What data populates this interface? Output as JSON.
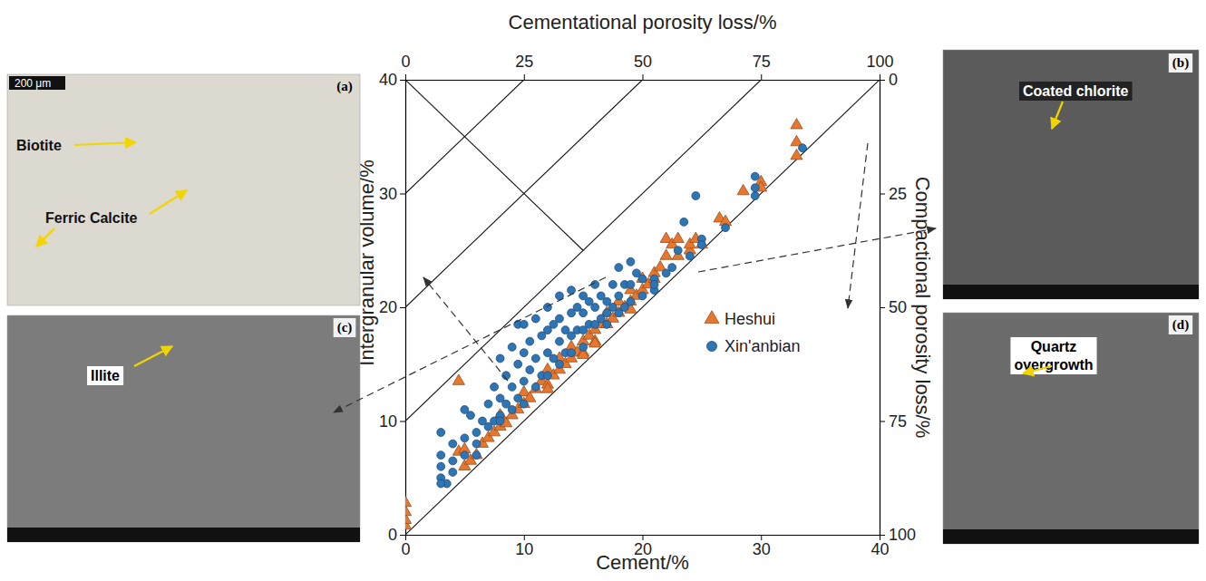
{
  "chart_data": {
    "type": "scatter",
    "x_label": "Cement/%",
    "y_label": "Intergranular volume/%",
    "x2_label": "Cementational porosity loss/%",
    "y2_label": "Compactional porosity loss/%",
    "xlim": [
      0,
      40
    ],
    "ylim": [
      0,
      40
    ],
    "xticks": [
      0,
      10,
      20,
      30,
      40
    ],
    "yticks": [
      0,
      10,
      20,
      30,
      40
    ],
    "x2lim": [
      0,
      100
    ],
    "x2ticks": [
      0,
      25,
      50,
      75,
      100
    ],
    "y2lim": [
      100,
      0
    ],
    "y2ticks": [
      0,
      25,
      50,
      75,
      100
    ],
    "legend": "right",
    "reference_lines": [
      {
        "x": [
          10,
          0
        ],
        "y": [
          40,
          30
        ]
      },
      {
        "x": [
          20,
          0
        ],
        "y": [
          40,
          20
        ]
      },
      {
        "x": [
          30,
          0
        ],
        "y": [
          40,
          10
        ]
      },
      {
        "x": [
          40,
          0
        ],
        "y": [
          40,
          0
        ]
      },
      {
        "x": [
          0,
          15
        ],
        "y": [
          40,
          25
        ]
      }
    ],
    "series": [
      {
        "name": "Heshui",
        "color": "#e8772e",
        "marker": "triangle",
        "x": [
          0,
          0,
          0,
          0,
          4.5,
          4.5,
          5,
          5,
          5.5,
          6,
          6.5,
          7,
          7.5,
          8,
          8,
          8.5,
          9,
          9.5,
          10,
          10,
          10.5,
          11,
          11.5,
          12,
          12,
          12.5,
          13,
          13,
          13.5,
          14,
          14,
          14.5,
          15,
          15,
          15.5,
          16,
          16,
          16.5,
          17,
          17,
          17.5,
          18,
          18,
          18.5,
          19,
          19,
          19.5,
          20,
          20,
          20.5,
          21,
          21,
          21.5,
          22,
          22,
          22.5,
          23,
          23,
          24,
          24,
          24.5,
          25,
          26.5,
          27,
          28.5,
          30,
          30,
          33,
          33,
          33,
          16,
          12,
          19,
          15
        ],
        "values": [
          0.8,
          1.3,
          2,
          2.8,
          13.5,
          7.3,
          7.5,
          6,
          6.5,
          7,
          8,
          8.5,
          9,
          9.5,
          10.5,
          9.8,
          10.5,
          11,
          11.5,
          12.5,
          12,
          12.8,
          13.5,
          13.2,
          14.5,
          14,
          14.5,
          15.5,
          15,
          15.5,
          16.5,
          16,
          17,
          16,
          17.5,
          18,
          17,
          18.5,
          18.5,
          19.5,
          19,
          19.5,
          20.5,
          20,
          20.5,
          21.5,
          21,
          21.5,
          22.5,
          22,
          22.5,
          23,
          23.5,
          24.5,
          26,
          25.5,
          24.5,
          26,
          25,
          25.5,
          26,
          25.5,
          27.8,
          27.5,
          30.2,
          31,
          30.5,
          36,
          34.5,
          33.3,
          16.8,
          12.8,
          19.8,
          15.8
        ]
      },
      {
        "name": "Xin'anbian",
        "color": "#2e75b6",
        "marker": "circle",
        "x": [
          3,
          3,
          3,
          3,
          3.5,
          4,
          4,
          5,
          5,
          5.5,
          6,
          6,
          6.5,
          7,
          7,
          7.5,
          7.5,
          8,
          8,
          8,
          8.5,
          8.5,
          9,
          9,
          9,
          9.5,
          9.5,
          9.5,
          10,
          10,
          10,
          10,
          10.5,
          10.5,
          11,
          11,
          11,
          11.5,
          11.5,
          12,
          12,
          12,
          12,
          12.5,
          12.5,
          13,
          13,
          13,
          13,
          13.5,
          13.5,
          14,
          14,
          14,
          14,
          14.5,
          14.5,
          15,
          15,
          15,
          15,
          15.5,
          15.5,
          16,
          16,
          16,
          16.5,
          16.5,
          17,
          17,
          17,
          17.5,
          17.5,
          18,
          18,
          18,
          18.5,
          18.5,
          19,
          19,
          19,
          19.5,
          20,
          20,
          21,
          21,
          22,
          23,
          23.5,
          24,
          24.5,
          25,
          25,
          27,
          29.5,
          29.5,
          29.5,
          33.5,
          3,
          21,
          22.5,
          8,
          6,
          4,
          5
        ],
        "values": [
          9,
          7,
          6,
          5,
          4.5,
          8,
          6.5,
          11,
          8.5,
          10.5,
          9,
          7,
          10,
          11.5,
          9.5,
          13,
          10,
          15.5,
          12,
          10.5,
          14,
          11.5,
          16.5,
          13,
          11,
          18.5,
          15,
          12,
          18.5,
          16,
          13.5,
          11.5,
          17,
          14.5,
          19,
          15.5,
          13,
          17.5,
          14,
          20,
          18,
          16,
          14,
          18.5,
          15.5,
          21,
          19,
          17,
          15,
          18,
          16,
          21.5,
          19.5,
          17.5,
          16,
          20,
          18,
          21,
          19.5,
          18,
          16.5,
          20.5,
          18.5,
          22,
          20,
          18.5,
          21,
          19,
          20.5,
          19.5,
          18.5,
          22,
          20,
          23.5,
          21,
          19.5,
          22,
          20,
          24,
          22,
          20.5,
          23,
          22.5,
          21,
          22.5,
          21.5,
          23,
          25,
          27.5,
          24.5,
          29.8,
          26,
          25.5,
          27,
          31.5,
          30.5,
          29.8,
          34,
          4.5,
          22,
          23.5,
          10,
          8,
          5.5,
          7
        ]
      }
    ]
  },
  "panels": [
    {
      "letter": "(a)",
      "scale_bar": "200 μm",
      "labels": [
        "Biotite",
        "Ferric Calcite"
      ]
    },
    {
      "letter": "(b)",
      "labels": [
        "Coated chlorite"
      ]
    },
    {
      "letter": "(c)",
      "labels": [
        "Illite"
      ]
    },
    {
      "letter": "(d)",
      "labels": [
        "Quartz overgrowth"
      ]
    }
  ]
}
